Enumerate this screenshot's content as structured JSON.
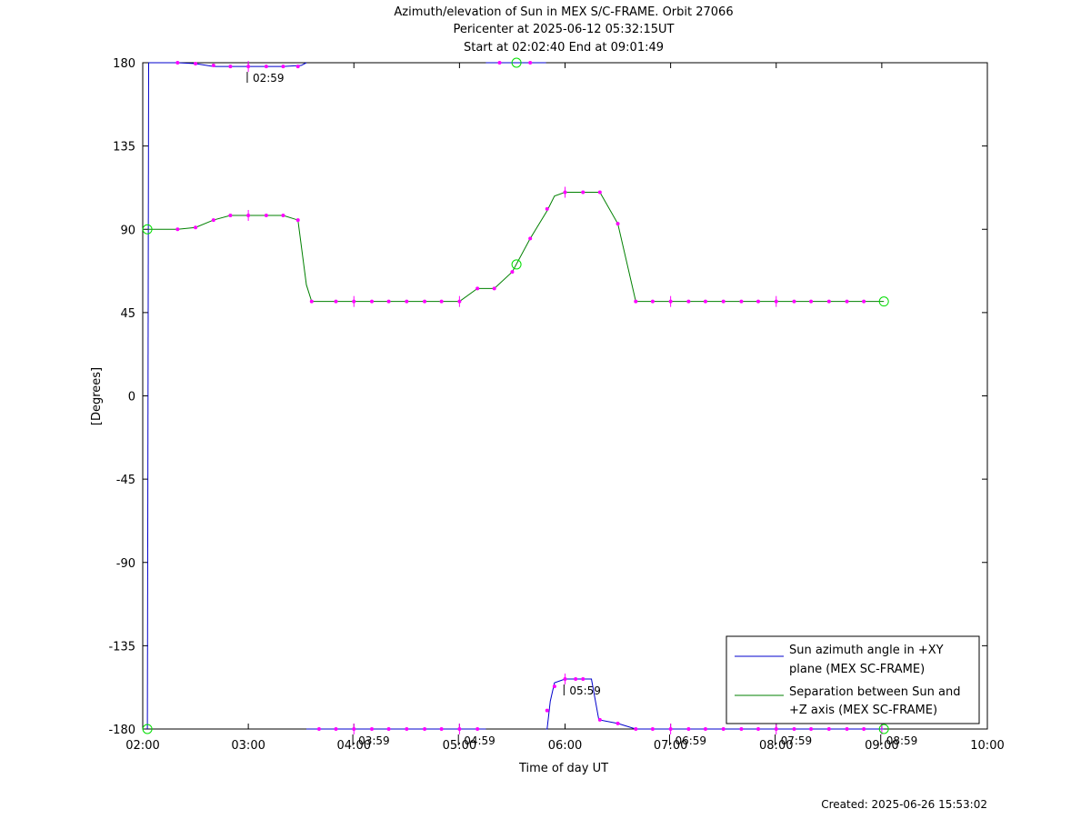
{
  "header": {
    "title_line1": "Azimuth/elevation of Sun in MEX S/C-FRAME.  Orbit 27066",
    "title_line2": "Pericenter at 2025-06-12 05:32:15UT",
    "title_line3": "Start at 02:02:40 End at 09:01:49"
  },
  "footer": {
    "created": "Created: 2025-06-26 15:53:02"
  },
  "colors": {
    "azimuth": "#0000cc",
    "separation": "#008000",
    "marker": "#ff00ff",
    "circle": "#00dd00"
  },
  "chart_data": {
    "type": "line",
    "xlabel": "Time of day UT",
    "ylabel": "[Degrees]",
    "xlim": [
      2.0,
      10.0
    ],
    "ylim": [
      -180,
      180
    ],
    "x_ticks": [
      "02:00",
      "03:00",
      "04:00",
      "05:00",
      "06:00",
      "07:00",
      "08:00",
      "09:00",
      "10:00"
    ],
    "y_ticks": [
      "180",
      "135",
      "90",
      "45",
      "0",
      "-45",
      "-90",
      "-135",
      "-180"
    ],
    "legend_position": "bottom-right",
    "series": [
      {
        "name": "Sun azimuth angle in +XY plane (MEX SC-FRAME)",
        "legend_line1": "Sun azimuth angle in +XY",
        "legend_line2": "plane (MEX SC-FRAME)",
        "segments": [
          [
            [
              2.044,
              -180
            ],
            [
              2.056,
              180
            ]
          ],
          [
            [
              2.056,
              180
            ],
            [
              2.33,
              180
            ],
            [
              2.5,
              179.5
            ],
            [
              2.67,
              178
            ],
            [
              3.0,
              178
            ],
            [
              3.33,
              178
            ],
            [
              3.5,
              178.5
            ],
            [
              3.55,
              180
            ]
          ],
          [
            [
              3.55,
              -180
            ],
            [
              3.6,
              -180
            ],
            [
              5.0,
              -180
            ],
            [
              5.25,
              -180
            ]
          ],
          [
            [
              5.25,
              180
            ],
            [
              5.55,
              180
            ],
            [
              5.82,
              180
            ]
          ],
          [
            [
              5.82,
              -180
            ],
            [
              5.83,
              -180
            ],
            [
              5.86,
              -165
            ],
            [
              5.9,
              -155
            ],
            [
              6.0,
              -153
            ],
            [
              6.25,
              -153
            ],
            [
              6.32,
              -175
            ],
            [
              6.5,
              -177
            ],
            [
              6.67,
              -180
            ],
            [
              9.02,
              -180
            ]
          ]
        ]
      },
      {
        "name": "Separation between Sun and +Z axis (MEX SC-FRAME)",
        "legend_line1": "Separation between Sun and",
        "legend_line2": "+Z axis (MEX SC-FRAME)",
        "points": [
          [
            2.044,
            90
          ],
          [
            2.33,
            90
          ],
          [
            2.5,
            91
          ],
          [
            2.67,
            95
          ],
          [
            2.83,
            97.5
          ],
          [
            3.0,
            97.5
          ],
          [
            3.17,
            97.5
          ],
          [
            3.33,
            97.5
          ],
          [
            3.47,
            95
          ],
          [
            3.55,
            60
          ],
          [
            3.6,
            51
          ],
          [
            3.83,
            51
          ],
          [
            4.5,
            51
          ],
          [
            5.0,
            51
          ],
          [
            5.17,
            58
          ],
          [
            5.33,
            58
          ],
          [
            5.5,
            67
          ],
          [
            5.67,
            85
          ],
          [
            5.83,
            100
          ],
          [
            5.9,
            108
          ],
          [
            6.0,
            110
          ],
          [
            6.17,
            110
          ],
          [
            6.33,
            110
          ],
          [
            6.5,
            93
          ],
          [
            6.67,
            51
          ],
          [
            6.83,
            51
          ],
          [
            9.02,
            51
          ]
        ]
      }
    ],
    "annotations": [
      {
        "label": "02:59",
        "x": 2.99,
        "series": "azimuth",
        "y": 178
      },
      {
        "label": "03:59",
        "x": 3.99,
        "series": "azimuth",
        "y": -180
      },
      {
        "label": "04:59",
        "x": 4.99,
        "series": "azimuth",
        "y": -180
      },
      {
        "label": "05:59",
        "x": 5.99,
        "series": "azimuth",
        "y": -153
      },
      {
        "label": "06:59",
        "x": 6.99,
        "series": "azimuth",
        "y": -180
      },
      {
        "label": "07:59",
        "x": 7.99,
        "series": "azimuth",
        "y": -180
      },
      {
        "label": "08:59",
        "x": 8.99,
        "series": "azimuth",
        "y": -180
      }
    ],
    "circle_markers": [
      {
        "series": "separation",
        "x": 2.044,
        "y": 90
      },
      {
        "series": "azimuth",
        "x": 2.044,
        "y": -180
      },
      {
        "series": "azimuth",
        "x": 5.54,
        "y": 180
      },
      {
        "series": "separation",
        "x": 5.54,
        "y": 71
      },
      {
        "series": "separation",
        "x": 9.02,
        "y": 51
      },
      {
        "series": "azimuth",
        "x": 9.02,
        "y": -180
      }
    ],
    "magenta_markers": {
      "azimuth": [
        [
          2.33,
          180
        ],
        [
          2.5,
          179.5
        ],
        [
          2.67,
          178.5
        ],
        [
          2.83,
          178
        ],
        [
          3.0,
          178
        ],
        [
          3.17,
          178
        ],
        [
          3.33,
          178
        ],
        [
          3.47,
          178
        ],
        [
          3.67,
          -180
        ],
        [
          3.83,
          -180
        ],
        [
          4.0,
          -180
        ],
        [
          4.17,
          -180
        ],
        [
          4.33,
          -180
        ],
        [
          4.5,
          -180
        ],
        [
          4.67,
          -180
        ],
        [
          4.83,
          -180
        ],
        [
          5.0,
          -180
        ],
        [
          5.17,
          -180
        ],
        [
          5.38,
          180
        ],
        [
          5.67,
          180
        ],
        [
          5.83,
          -170
        ],
        [
          5.9,
          -157
        ],
        [
          6.0,
          -153
        ],
        [
          6.1,
          -153
        ],
        [
          6.17,
          -153
        ],
        [
          6.33,
          -175
        ],
        [
          6.5,
          -177
        ],
        [
          6.67,
          -180
        ],
        [
          6.83,
          -180
        ],
        [
          7.0,
          -180
        ],
        [
          7.17,
          -180
        ],
        [
          7.33,
          -180
        ],
        [
          7.5,
          -180
        ],
        [
          7.67,
          -180
        ],
        [
          7.83,
          -180
        ],
        [
          8.0,
          -180
        ],
        [
          8.17,
          -180
        ],
        [
          8.33,
          -180
        ],
        [
          8.5,
          -180
        ],
        [
          8.67,
          -180
        ],
        [
          8.83,
          -180
        ]
      ],
      "separation": [
        [
          2.33,
          90
        ],
        [
          2.5,
          91
        ],
        [
          2.67,
          95
        ],
        [
          2.83,
          97.5
        ],
        [
          3.0,
          97.5
        ],
        [
          3.17,
          97.5
        ],
        [
          3.33,
          97.5
        ],
        [
          3.47,
          95
        ],
        [
          3.6,
          51
        ],
        [
          3.83,
          51
        ],
        [
          4.0,
          51
        ],
        [
          4.17,
          51
        ],
        [
          4.33,
          51
        ],
        [
          4.5,
          51
        ],
        [
          4.67,
          51
        ],
        [
          4.83,
          51
        ],
        [
          5.0,
          51
        ],
        [
          5.17,
          58
        ],
        [
          5.33,
          58
        ],
        [
          5.5,
          67
        ],
        [
          5.67,
          85
        ],
        [
          5.83,
          101
        ],
        [
          6.0,
          110
        ],
        [
          6.17,
          110
        ],
        [
          6.33,
          110
        ],
        [
          6.5,
          93
        ],
        [
          6.67,
          51
        ],
        [
          6.83,
          51
        ],
        [
          7.0,
          51
        ],
        [
          7.17,
          51
        ],
        [
          7.33,
          51
        ],
        [
          7.5,
          51
        ],
        [
          7.67,
          51
        ],
        [
          7.83,
          51
        ],
        [
          8.0,
          51
        ],
        [
          8.17,
          51
        ],
        [
          8.33,
          51
        ],
        [
          8.5,
          51
        ],
        [
          8.67,
          51
        ],
        [
          8.83,
          51
        ]
      ]
    },
    "hour_ticks": {
      "azimuth": [
        [
          3.0,
          178
        ],
        [
          4.0,
          -180
        ],
        [
          5.0,
          -180
        ],
        [
          6.0,
          -153
        ],
        [
          7.0,
          -180
        ],
        [
          8.0,
          -180
        ],
        [
          9.0,
          -180
        ]
      ],
      "separation": [
        [
          3.0,
          97.5
        ],
        [
          4.0,
          51
        ],
        [
          5.0,
          51
        ],
        [
          6.0,
          110
        ],
        [
          7.0,
          51
        ],
        [
          8.0,
          51
        ]
      ]
    }
  }
}
